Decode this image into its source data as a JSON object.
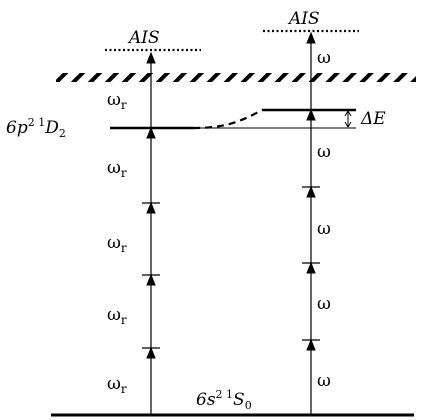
{
  "labels": {
    "ais_left": "AIS",
    "ais_right": "AIS",
    "upper_level": {
      "main": "6p",
      "sup": "2 1",
      "term": "D",
      "sub": "2"
    },
    "ground_level": {
      "main": "6s",
      "sup": "2 1",
      "term": "S",
      "sub": "0"
    },
    "delta_e": "ΔE",
    "omega_r": {
      "main": "ω",
      "sub": "r"
    },
    "omega": "ω"
  },
  "columns": {
    "left": {
      "photon_labels": [
        "ωr",
        "ωr",
        "ωr",
        "ωr",
        "ωr"
      ]
    },
    "right": {
      "photon_labels": [
        "ω",
        "ω",
        "ω",
        "ω",
        "ω"
      ]
    }
  },
  "colors": {
    "line": "#000000",
    "background": "#ffffff"
  }
}
